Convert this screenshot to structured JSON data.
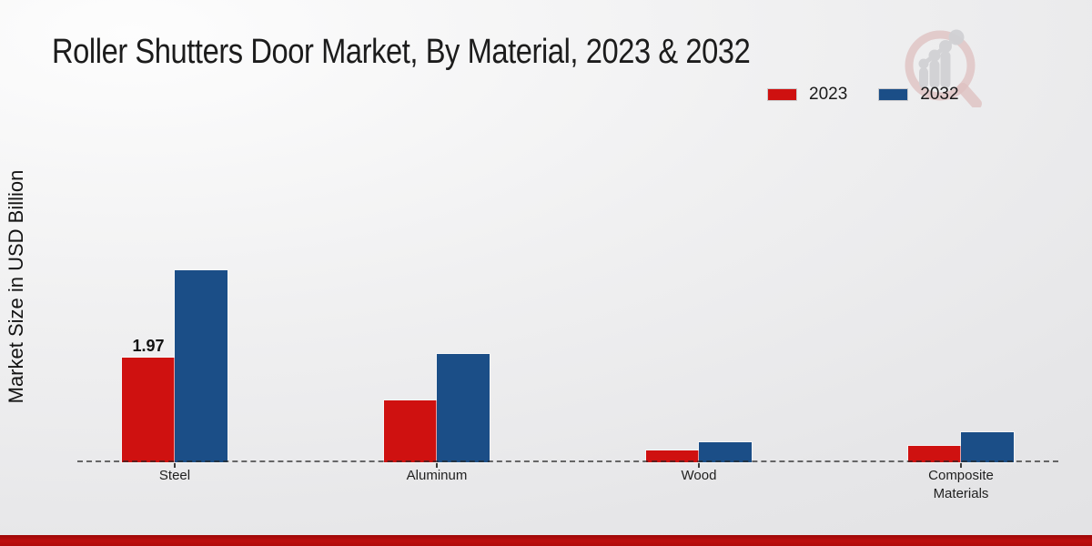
{
  "title": "Roller Shutters Door Market, By Material, 2023 & 2032",
  "ylabel": "Market Size in USD Billion",
  "legend": [
    {
      "label": "2023",
      "color": "#cf1110"
    },
    {
      "label": "2032",
      "color": "#1b4e87"
    }
  ],
  "colors": {
    "series_2023": "#cf1110",
    "series_2032": "#1b4e87",
    "footer_accent": "#b00c0c",
    "background_light": "#fdfdfd",
    "background_dark": "#e1e1e3",
    "baseline": "#282828"
  },
  "logo": {
    "name": "market-research-magnifier-logo-watermark"
  },
  "chart_data": {
    "type": "bar",
    "title": "Roller Shutters Door Market, By Material, 2023 & 2032",
    "xlabel": "",
    "ylabel": "Market Size in USD Billion",
    "categories": [
      "Steel",
      "Aluminum",
      "Wood",
      "Composite Materials"
    ],
    "series": [
      {
        "name": "2023",
        "color": "#cf1110",
        "values": [
          1.97,
          1.16,
          0.23,
          0.3
        ]
      },
      {
        "name": "2032",
        "color": "#1b4e87",
        "values": [
          3.61,
          2.04,
          0.37,
          0.57
        ]
      }
    ],
    "point_labels": [
      {
        "category": "Steel",
        "series": "2023",
        "text": "1.97"
      }
    ],
    "ylim": [
      0,
      4
    ],
    "grid": false,
    "y_axis_ticks_visible": false,
    "legend_position": "top-right",
    "baseline_style": "dashed"
  }
}
